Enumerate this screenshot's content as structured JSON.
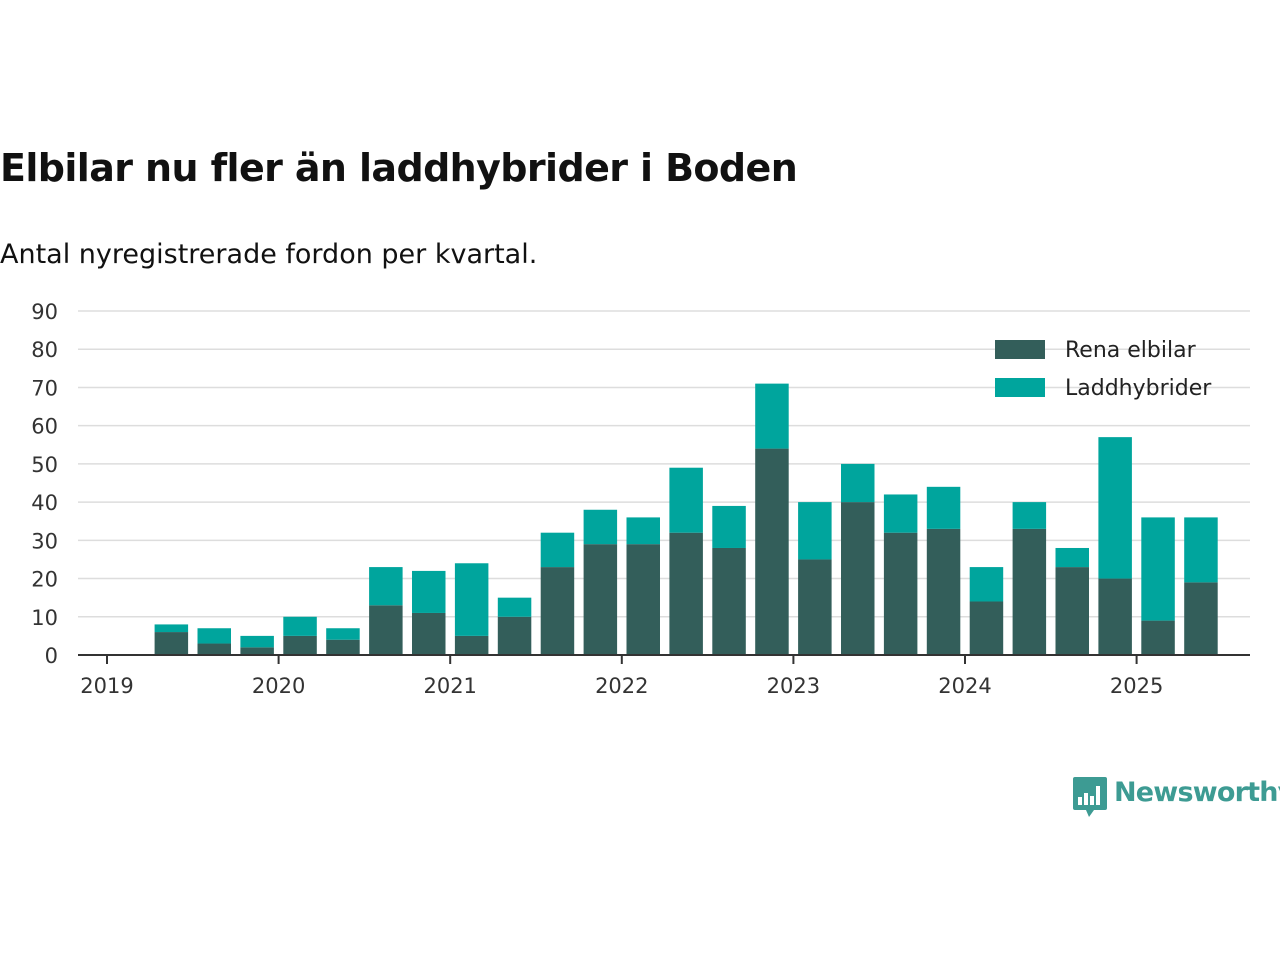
{
  "title": "Elbilar nu fler än laddhybrider i Boden",
  "subtitle": "Antal nyregistrerade fordon per kvartal.",
  "brand": {
    "name": "Newsworthy",
    "color": "#3d9b93"
  },
  "colors": {
    "elbilar": "#335e5a",
    "laddhybrider": "#00a59d",
    "grid": "#dddddd",
    "axis": "#333333",
    "text": "#333333"
  },
  "chart_data": {
    "type": "bar",
    "stacked": true,
    "categories": [
      "2019 Q1",
      "2019 Q2",
      "2019 Q3",
      "2019 Q4",
      "2020 Q1",
      "2020 Q2",
      "2020 Q3",
      "2020 Q4",
      "2021 Q1",
      "2021 Q2",
      "2021 Q3",
      "2021 Q4",
      "2022 Q1",
      "2022 Q2",
      "2022 Q3",
      "2022 Q4",
      "2023 Q1",
      "2023 Q2",
      "2023 Q3",
      "2023 Q4",
      "2024 Q1",
      "2024 Q2",
      "2024 Q3",
      "2024 Q4",
      "2025 Q1",
      "2025 Q2"
    ],
    "series": [
      {
        "name": "Rena elbilar",
        "color": "#335e5a",
        "values": [
          0,
          6,
          3,
          2,
          5,
          4,
          13,
          11,
          5,
          10,
          23,
          29,
          29,
          32,
          28,
          54,
          25,
          40,
          32,
          33,
          14,
          33,
          23,
          20,
          9,
          19
        ]
      },
      {
        "name": "Laddhybrider",
        "color": "#00a59d",
        "values": [
          0,
          2,
          4,
          3,
          5,
          3,
          10,
          11,
          19,
          5,
          9,
          9,
          7,
          17,
          11,
          17,
          15,
          10,
          10,
          11,
          9,
          7,
          5,
          37,
          27,
          17
        ]
      }
    ],
    "x_tick_labels": [
      "2019",
      "2020",
      "2021",
      "2022",
      "2023",
      "2024",
      "2025"
    ],
    "y_ticks": [
      0,
      10,
      20,
      30,
      40,
      50,
      60,
      70,
      80,
      90
    ],
    "ylim": [
      0,
      90
    ],
    "xlabel": "",
    "ylabel": "",
    "grid": true,
    "legend_position": "top-right"
  }
}
